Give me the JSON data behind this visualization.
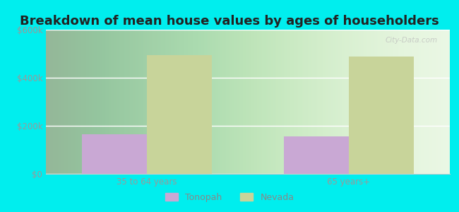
{
  "title": "Breakdown of mean house values by ages of householders",
  "categories": [
    "35 to 64 years",
    "65 years+"
  ],
  "tonopah_values": [
    165000,
    155000
  ],
  "nevada_values": [
    495000,
    487000
  ],
  "tonopah_color": "#c9a8d4",
  "nevada_color": "#c8d49a",
  "background_color": "#00eeee",
  "plot_bg_top": "#f0f8ee",
  "plot_bg_bottom": "#d0eecc",
  "ylim": [
    0,
    600000
  ],
  "yticks": [
    0,
    200000,
    400000,
    600000
  ],
  "ytick_labels": [
    "$0",
    "$200k",
    "$400k",
    "$600k"
  ],
  "legend_labels": [
    "Tonopah",
    "Nevada"
  ],
  "bar_width": 0.32,
  "title_fontsize": 13,
  "tick_fontsize": 8.5,
  "legend_fontsize": 9,
  "tick_color": "#999999",
  "watermark": "City-Data.com"
}
